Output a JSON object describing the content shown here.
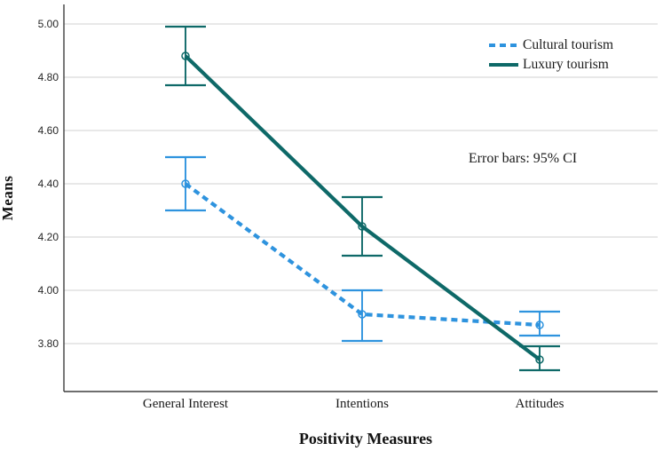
{
  "figure": {
    "kind": "SPSS-style means plot with 95% CI error bars",
    "background": "#ffffff"
  },
  "colors": {
    "cultural": "#2E93DE",
    "luxury": "#0E6968",
    "gridline": "#D9D9D9",
    "axis": "#3F3F3F",
    "text": "#1a1a1a"
  },
  "legend": {
    "items": [
      {
        "label": "Cultural tourism",
        "style": "dashed"
      },
      {
        "label": "Luxury tourism",
        "style": "solid"
      }
    ]
  },
  "chart_data": {
    "type": "line",
    "title": "",
    "xlabel": "Positivity Measures",
    "ylabel": "Means",
    "annotation": "Error bars: 95% CI",
    "categories": [
      "General Interest",
      "Intentions",
      "Attitudes"
    ],
    "y_ticks": [
      "5.00",
      "4.80",
      "4.60",
      "4.40",
      "4.20",
      "4.00",
      "3.80"
    ],
    "ylim": [
      3.62,
      5.07
    ],
    "grid": true,
    "legend_position": "top-right-inside",
    "error_bars": "95% CI",
    "series": [
      {
        "name": "Cultural tourism",
        "color": "#2E93DE",
        "line_style": "dashed",
        "marker": "open-circle",
        "values": [
          4.4,
          3.91,
          3.87
        ],
        "ci_low": [
          4.3,
          3.81,
          3.83
        ],
        "ci_high": [
          4.5,
          4.0,
          3.92
        ]
      },
      {
        "name": "Luxury tourism",
        "color": "#0E6968",
        "line_style": "solid",
        "marker": "open-circle",
        "values": [
          4.88,
          4.24,
          3.74
        ],
        "ci_low": [
          4.77,
          4.13,
          3.7
        ],
        "ci_high": [
          4.99,
          4.35,
          3.79
        ]
      }
    ]
  }
}
